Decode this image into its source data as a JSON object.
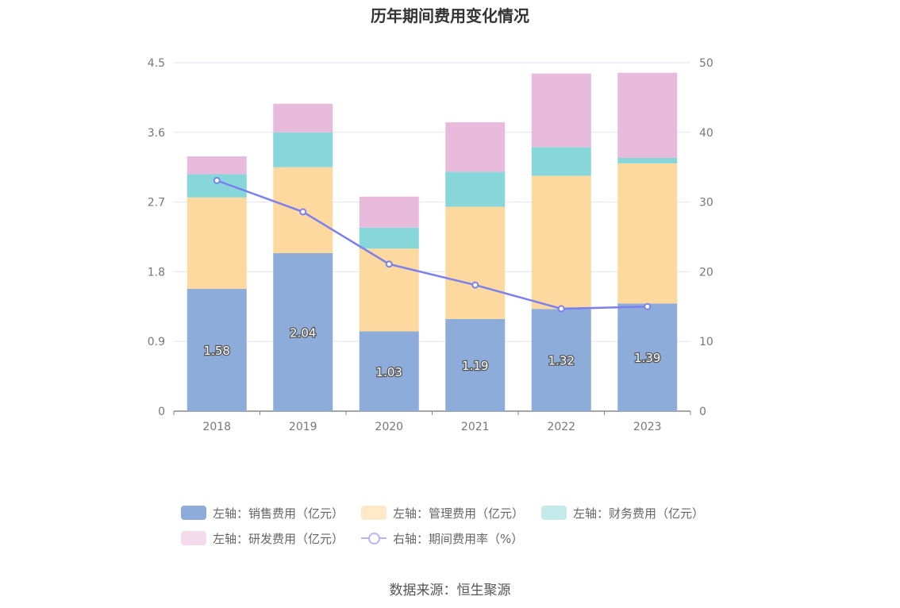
{
  "title": "历年期间费用变化情况",
  "source": "数据来源：恒生聚源",
  "chart_data": {
    "type": "bar",
    "stacked": true,
    "categories": [
      "2018",
      "2019",
      "2020",
      "2021",
      "2022",
      "2023"
    ],
    "left_axis": {
      "min": 0,
      "max": 4.5,
      "ticks": [
        "0",
        "0.9",
        "1.8",
        "2.7",
        "3.6",
        "4.5"
      ]
    },
    "right_axis": {
      "min": 0,
      "max": 50,
      "ticks": [
        "0",
        "10",
        "20",
        "30",
        "40",
        "50"
      ]
    },
    "series": [
      {
        "name": "左轴：销售费用（亿元）",
        "axis": "left",
        "color": "#8eacd9",
        "values": [
          1.58,
          2.04,
          1.03,
          1.19,
          1.32,
          1.39
        ],
        "labels": [
          "1.58",
          "2.04",
          "1.03",
          "1.19",
          "1.32",
          "1.39"
        ]
      },
      {
        "name": "左轴：管理费用（亿元）",
        "axis": "left",
        "color": "#fdd99f",
        "values": [
          1.18,
          1.11,
          1.07,
          1.45,
          1.72,
          1.81
        ]
      },
      {
        "name": "左轴：财务费用（亿元）",
        "axis": "left",
        "color": "#86d6da",
        "values": [
          0.3,
          0.45,
          0.27,
          0.45,
          0.37,
          0.07
        ]
      },
      {
        "name": "左轴：研发费用（亿元）",
        "axis": "left",
        "color": "#e8badb",
        "values": [
          0.23,
          0.37,
          0.4,
          0.64,
          0.95,
          1.1
        ]
      },
      {
        "name": "右轴：期间费用率（%）",
        "axis": "right",
        "type": "line",
        "color": "#7b80ee",
        "values": [
          33.1,
          28.6,
          21.1,
          18.1,
          14.7,
          15.0
        ]
      }
    ]
  }
}
